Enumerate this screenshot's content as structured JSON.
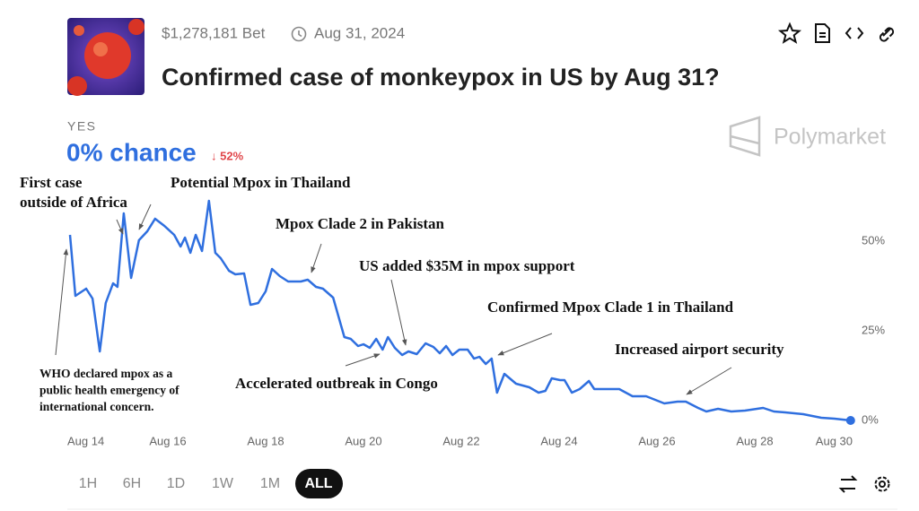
{
  "header": {
    "volume": "$1,278,181 Bet",
    "end_date": "Aug 31, 2024",
    "title": "Confirmed case of monkeypox in US by Aug 31?"
  },
  "outcome": {
    "label": "YES",
    "chance": "0% chance",
    "change": "↓ 52%"
  },
  "brand": "Polymarket",
  "ranges": [
    "1H",
    "6H",
    "1D",
    "1W",
    "1M",
    "ALL"
  ],
  "chart_data": {
    "type": "line",
    "x": [
      14.0,
      14.11,
      14.33,
      14.46,
      14.61,
      14.73,
      14.88,
      14.97,
      15.1,
      15.25,
      15.41,
      15.58,
      15.74,
      15.93,
      16.13,
      16.26,
      16.35,
      16.46,
      16.57,
      16.7,
      16.84,
      16.97,
      17.08,
      17.25,
      17.38,
      17.56,
      17.69,
      17.85,
      18.0,
      18.13,
      18.29,
      18.46,
      18.72,
      18.86,
      19.03,
      19.17,
      19.38,
      19.61,
      19.74,
      19.89,
      20.0,
      20.13,
      20.26,
      20.39,
      20.5,
      20.64,
      20.79,
      20.92,
      21.09,
      21.27,
      21.43,
      21.56,
      21.69,
      21.82,
      21.96,
      22.13,
      22.26,
      22.37,
      22.5,
      22.62,
      22.73,
      22.88,
      23.12,
      23.39,
      23.58,
      23.72,
      23.85,
      24.02,
      24.11,
      24.26,
      24.42,
      24.61,
      24.72,
      25.05,
      25.23,
      25.5,
      25.78,
      26.15,
      26.42,
      26.59,
      26.84,
      27.01,
      27.25,
      27.52,
      27.8,
      28.17,
      28.39,
      28.62,
      28.99,
      29.36,
      29.63,
      29.96
    ],
    "series": [
      {
        "name": "Yes",
        "color": "#2f6fdf",
        "values": [
          51.75,
          34.75,
          36.75,
          34,
          19.25,
          32.75,
          38.25,
          37.25,
          57.75,
          39.75,
          50.25,
          52.75,
          56.25,
          54.25,
          51.75,
          48.5,
          51,
          46.75,
          51.75,
          47.25,
          61.25,
          46.75,
          45.25,
          41.75,
          40.75,
          41,
          32.25,
          32.75,
          36,
          42.25,
          40.25,
          38.75,
          38.75,
          39.25,
          37.25,
          36.75,
          34.25,
          23.25,
          22.75,
          20.75,
          21.25,
          20.25,
          22.75,
          19.75,
          23.25,
          20.25,
          18.25,
          19.25,
          18.5,
          21.5,
          20.5,
          18.75,
          20.75,
          18.25,
          19.75,
          19.75,
          17.25,
          17.75,
          15.75,
          17.25,
          7.75,
          13,
          10.25,
          9.25,
          7.75,
          8.25,
          11.75,
          11.25,
          11.25,
          7.75,
          8.75,
          11,
          8.75,
          8.75,
          8.75,
          6.75,
          6.75,
          4.75,
          5.25,
          5.25,
          3.5,
          2.5,
          3.25,
          2.5,
          2.75,
          3.5,
          2.5,
          2.25,
          1.75,
          0.75,
          0.5,
          0
        ]
      }
    ],
    "xlim": [
      14,
      30
    ],
    "xticks": [
      {
        "value": 14,
        "label": "Aug 14"
      },
      {
        "value": 16,
        "label": "Aug 16"
      },
      {
        "value": 18,
        "label": "Aug 18"
      },
      {
        "value": 20,
        "label": "Aug 20"
      },
      {
        "value": 22,
        "label": "Aug 22"
      },
      {
        "value": 24,
        "label": "Aug 24"
      },
      {
        "value": 26,
        "label": "Aug 26"
      },
      {
        "value": 28,
        "label": "Aug 28"
      },
      {
        "value": 30,
        "label": "Aug 30"
      }
    ],
    "ylim": [
      0,
      64
    ],
    "yticks": [
      {
        "value": 0,
        "label": "0%"
      },
      {
        "value": 25,
        "label": "25%"
      },
      {
        "value": 50,
        "label": "50%"
      }
    ],
    "grid": false,
    "annotations": [
      {
        "lines": [
          "First case",
          "outside of Africa"
        ]
      },
      {
        "lines": [
          "Potential Mpox in Thailand"
        ]
      },
      {
        "lines": [
          "Mpox Clade 2 in Pakistan"
        ]
      },
      {
        "lines": [
          "US added $35M in mpox support"
        ]
      },
      {
        "lines": [
          "Confirmed Mpox Clade 1 in Thailand"
        ]
      },
      {
        "lines": [
          "Increased airport security"
        ]
      },
      {
        "lines": [
          "Accelerated outbreak in Congo"
        ]
      },
      {
        "lines": [
          "WHO declared mpox as a",
          "public health emergency of",
          "international concern."
        ]
      }
    ]
  }
}
